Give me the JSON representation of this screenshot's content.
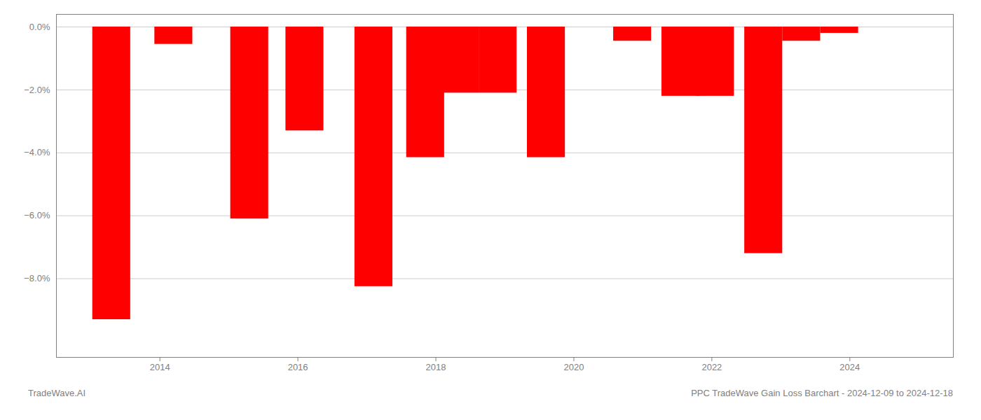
{
  "chart_data": {
    "type": "bar",
    "x": [
      2013.3,
      2014.2,
      2015.3,
      2016.1,
      2017.1,
      2017.85,
      2018.35,
      2018.9,
      2019.6,
      2020.85,
      2021.55,
      2022.05,
      2022.75,
      2023.3,
      2023.85
    ],
    "values": [
      -9.3,
      -0.55,
      -6.1,
      -3.3,
      -8.25,
      -4.15,
      -2.1,
      -2.1,
      -4.15,
      -0.45,
      -2.2,
      -2.2,
      -7.2,
      -0.45,
      -0.2
    ],
    "color": "#ff0000",
    "xlim": [
      2012.5,
      2025.5
    ],
    "xticks": [
      2014,
      2016,
      2018,
      2020,
      2022,
      2024
    ],
    "ylim": [
      -10.5,
      0.4
    ],
    "yticks": [
      {
        "value": 0.0,
        "label": "0.0%"
      },
      {
        "value": -2.0,
        "label": "−2.0%"
      },
      {
        "value": -4.0,
        "label": "−4.0%"
      },
      {
        "value": -6.0,
        "label": "−6.0%"
      },
      {
        "value": -8.0,
        "label": "−8.0%"
      }
    ],
    "grid": true,
    "annotations": [
      "TradeWave.AI",
      "PPC TradeWave Gain Loss Barchart - 2024-12-09 to 2024-12-18"
    ]
  }
}
